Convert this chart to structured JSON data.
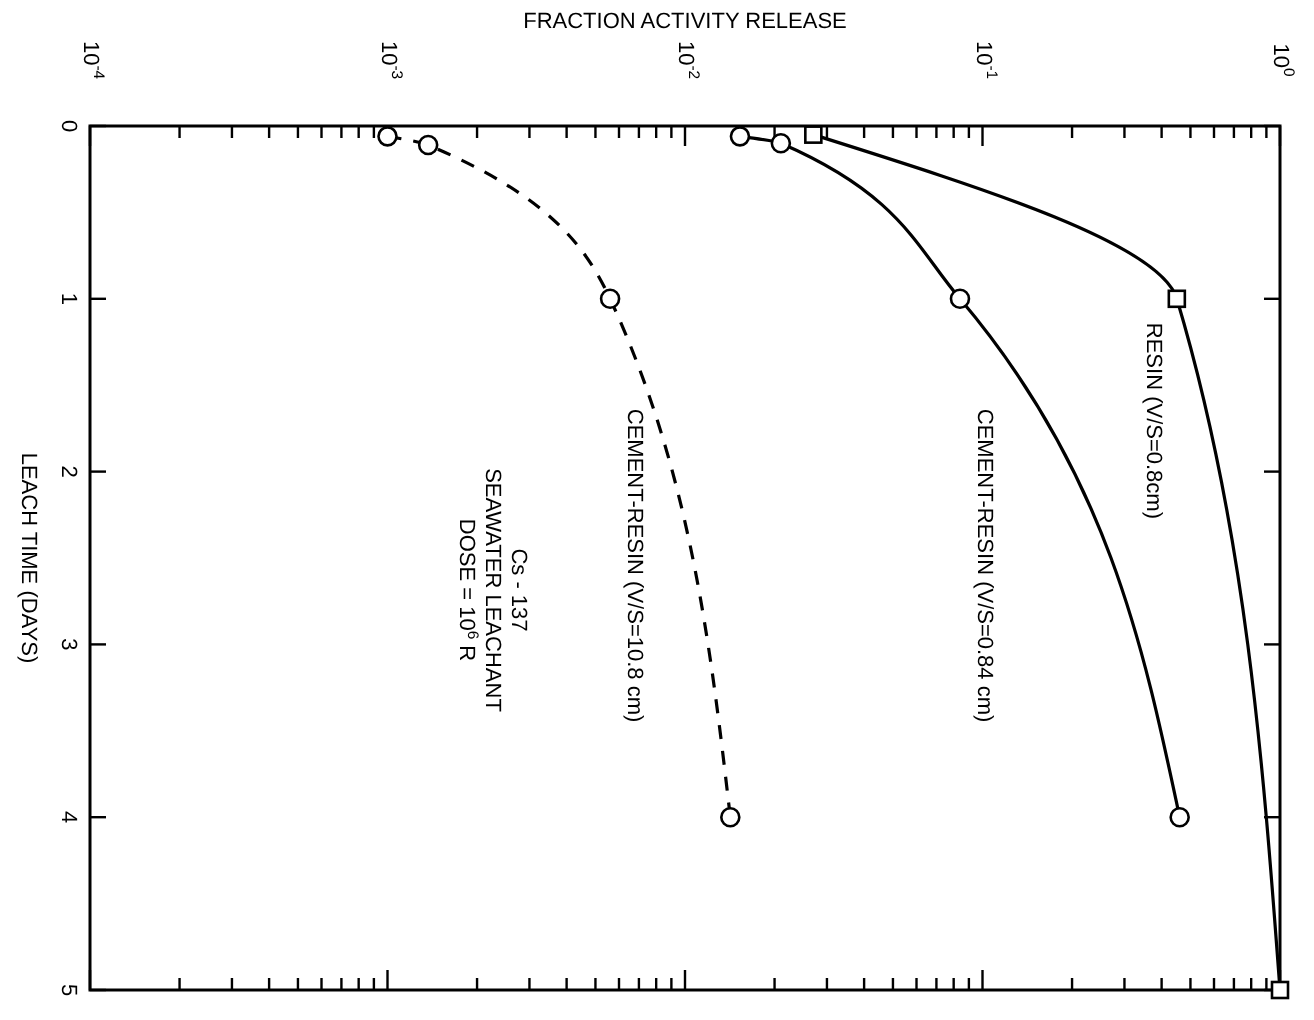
{
  "chart_data": {
    "type": "line",
    "xlabel": "FRACTION ACTIVITY RELEASE",
    "ylabel": "LEACH TIME (DAYS)",
    "log": "x",
    "xlim": [
      0.0001,
      1
    ],
    "ylim": [
      5,
      0
    ],
    "xticks": [
      {
        "value": 0.0001,
        "label": "10$^{-4}$"
      },
      {
        "value": 0.0002,
        "label": null
      },
      {
        "value": 0.0003,
        "label": null
      },
      {
        "value": 0.0004,
        "label": null
      },
      {
        "value": 0.0005,
        "label": null
      },
      {
        "value": 0.0006,
        "label": null
      },
      {
        "value": 0.0007,
        "label": null
      },
      {
        "value": 0.0008,
        "label": null
      },
      {
        "value": 0.0009,
        "label": null
      },
      {
        "value": 0.001,
        "label": "10$^{-3}$"
      },
      {
        "value": 0.002,
        "label": null
      },
      {
        "value": 0.003,
        "label": null
      },
      {
        "value": 0.004,
        "label": null
      },
      {
        "value": 0.005,
        "label": null
      },
      {
        "value": 0.006,
        "label": null
      },
      {
        "value": 0.007,
        "label": null
      },
      {
        "value": 0.008,
        "label": null
      },
      {
        "value": 0.009,
        "label": null
      },
      {
        "value": 0.01,
        "label": "10$^{-2}$"
      },
      {
        "value": 0.02,
        "label": null
      },
      {
        "value": 0.03,
        "label": null
      },
      {
        "value": 0.04,
        "label": null
      },
      {
        "value": 0.05,
        "label": null
      },
      {
        "value": 0.06,
        "label": null
      },
      {
        "value": 0.07,
        "label": null
      },
      {
        "value": 0.08,
        "label": null
      },
      {
        "value": 0.09,
        "label": null
      },
      {
        "value": 0.1,
        "label": "10$^{-1}$"
      },
      {
        "value": 0.2,
        "label": null
      },
      {
        "value": 0.3,
        "label": null
      },
      {
        "value": 0.4,
        "label": null
      },
      {
        "value": 0.5,
        "label": null
      },
      {
        "value": 0.6,
        "label": null
      },
      {
        "value": 0.7,
        "label": null
      },
      {
        "value": 0.8,
        "label": null
      },
      {
        "value": 0.9,
        "label": null
      },
      {
        "value": 1,
        "label": "10$^{0}$"
      }
    ],
    "yticks": [
      0,
      1,
      2,
      3,
      4,
      5
    ],
    "series": [
      {
        "name": "RESIN (V/S=0.8cm)",
        "color": "#000000",
        "marker": "square",
        "line_style": "solid",
        "x": [
          0.027,
          0.45,
          1.0
        ],
        "values": [
          0.05,
          1,
          5
        ]
      },
      {
        "name": "CEMENT-RESIN (V/S=0.84 cm)",
        "color": "#000000",
        "marker": "circle",
        "line_style": "solid",
        "x": [
          0.0153,
          0.021,
          0.084,
          0.46
        ],
        "values": [
          0.06,
          0.1,
          1,
          4
        ]
      },
      {
        "name": "CEMENT-RESIN (V/S=10.8 cm)",
        "color": "#000000",
        "marker": "circle",
        "line_style": "dashed",
        "x": [
          0.001,
          0.00137,
          0.0056,
          0.0142
        ],
        "values": [
          0.06,
          0.11,
          1,
          4
        ]
      }
    ],
    "annotations": [
      "Cs - 137\nSEAWATER LEACHANT\nDOSE = 10$^{6}$ R"
    ],
    "grid": false
  }
}
